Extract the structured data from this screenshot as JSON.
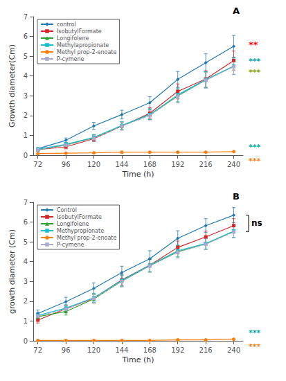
{
  "chart_data": [
    {
      "type": "line",
      "title": "A",
      "xlabel": "Time (h)",
      "ylabel": "Growth diameter(Cm)",
      "x": [
        72,
        96,
        120,
        144,
        168,
        192,
        216,
        240
      ],
      "xlim": [
        68,
        248
      ],
      "xticks": [
        72,
        96,
        120,
        144,
        168,
        192,
        216,
        240
      ],
      "ylim": [
        0,
        7
      ],
      "yticks": [
        0,
        1,
        2,
        3,
        4,
        5,
        6,
        7
      ],
      "grid": false,
      "legend": "upper left",
      "series": [
        {
          "name": "control",
          "color": "#1f77b4",
          "marker": "diamond",
          "line_style": "solid",
          "values": [
            0.33,
            0.75,
            1.48,
            2.05,
            2.65,
            3.83,
            4.67,
            5.5
          ],
          "errors": [
            0.05,
            0.12,
            0.18,
            0.22,
            0.3,
            0.4,
            0.45,
            0.55
          ]
        },
        {
          "name": "IsobutylFormate",
          "color": "#d62728",
          "marker": "square",
          "line_style": "solid",
          "values": [
            0.28,
            0.42,
            0.83,
            1.47,
            2.12,
            3.22,
            3.85,
            4.78
          ],
          "errors": [
            0.05,
            0.1,
            0.15,
            0.2,
            0.28,
            0.38,
            0.42,
            0.48
          ]
        },
        {
          "name": "Longifolene",
          "color": "#2ca02c",
          "marker": "triangle",
          "line_style": "solid",
          "values": [
            0.27,
            0.53,
            0.88,
            1.48,
            2.05,
            3.0,
            3.8,
            4.5
          ],
          "errors": [
            0.05,
            0.1,
            0.15,
            0.2,
            0.25,
            0.35,
            0.4,
            0.42
          ]
        },
        {
          "name": "Methylapropionate",
          "color": "#17becf",
          "marker": "square",
          "line_style": "solid",
          "values": [
            0.3,
            0.55,
            0.9,
            1.5,
            2.05,
            3.05,
            3.82,
            4.5
          ],
          "errors": [
            0.05,
            0.1,
            0.15,
            0.2,
            0.25,
            0.35,
            0.4,
            0.42
          ]
        },
        {
          "name": "Methyl prop-2-enoate",
          "color": "#ff7f0e",
          "marker": "circle",
          "line_style": "solid",
          "values": [
            0.08,
            0.1,
            0.12,
            0.15,
            0.15,
            0.15,
            0.15,
            0.18
          ],
          "errors": [
            0.02,
            0.02,
            0.02,
            0.02,
            0.02,
            0.02,
            0.02,
            0.02
          ]
        },
        {
          "name": "P-cymene",
          "color": "#aaaacc",
          "marker": "square",
          "line_style": "dashed",
          "values": [
            0.27,
            0.5,
            0.85,
            1.47,
            2.0,
            2.98,
            3.78,
            4.47
          ],
          "errors": [
            0.05,
            0.1,
            0.15,
            0.2,
            0.25,
            0.35,
            0.4,
            0.4
          ]
        }
      ],
      "annotations": [
        {
          "text": "**",
          "color": "red"
        },
        {
          "text": "***",
          "color": "#00aaaa"
        },
        {
          "text": "***",
          "color": "#88aa00"
        },
        {
          "text": "***",
          "color": "#00aaaa"
        },
        {
          "text": "***",
          "color": "#ff7f0e"
        }
      ]
    },
    {
      "type": "line",
      "title": "B",
      "xlabel": "Time (h)",
      "ylabel": "growth diameter (Cm)",
      "x": [
        72,
        96,
        120,
        144,
        168,
        192,
        216,
        240
      ],
      "xlim": [
        68,
        248
      ],
      "xticks": [
        72,
        96,
        120,
        144,
        168,
        192,
        216,
        240
      ],
      "ylim": [
        0,
        7
      ],
      "yticks": [
        0,
        1,
        2,
        3,
        4,
        5,
        6,
        7
      ],
      "grid": false,
      "legend": "upper left",
      "series": [
        {
          "name": "Control",
          "color": "#1f77b4",
          "marker": "diamond",
          "line_style": "solid",
          "values": [
            1.38,
            1.98,
            2.65,
            3.45,
            4.15,
            5.18,
            5.82,
            6.35
          ],
          "errors": [
            0.18,
            0.22,
            0.28,
            0.32,
            0.4,
            0.38,
            0.35,
            0.38
          ]
        },
        {
          "name": "IsobutyIFormate",
          "color": "#d62728",
          "marker": "square",
          "line_style": "solid",
          "values": [
            1.05,
            1.62,
            2.15,
            3.08,
            3.82,
            4.72,
            5.25,
            5.82
          ],
          "errors": [
            0.15,
            0.18,
            0.22,
            0.28,
            0.35,
            0.32,
            0.3,
            0.35
          ]
        },
        {
          "name": "Longifolene",
          "color": "#2ca02c",
          "marker": "triangle",
          "line_style": "solid",
          "values": [
            1.22,
            1.48,
            2.12,
            3.02,
            3.8,
            4.5,
            4.9,
            5.52
          ],
          "errors": [
            0.15,
            0.18,
            0.22,
            0.28,
            0.32,
            0.3,
            0.28,
            0.32
          ]
        },
        {
          "name": "Methypropionate",
          "color": "#17becf",
          "marker": "square",
          "line_style": "solid",
          "values": [
            1.28,
            1.65,
            2.18,
            3.05,
            3.82,
            4.55,
            4.92,
            5.55
          ],
          "errors": [
            0.15,
            0.18,
            0.22,
            0.28,
            0.32,
            0.3,
            0.28,
            0.32
          ]
        },
        {
          "name": "Methyl prop-2-enoate",
          "color": "#ff7f0e",
          "marker": "circle",
          "line_style": "solid",
          "values": [
            0.02,
            0.02,
            0.02,
            0.02,
            0.02,
            0.05,
            0.05,
            0.08
          ],
          "errors": [
            0.01,
            0.01,
            0.01,
            0.01,
            0.01,
            0.02,
            0.02,
            0.03
          ]
        },
        {
          "name": "P-cymene",
          "color": "#aaaacc",
          "marker": "square",
          "line_style": "dashed",
          "values": [
            1.25,
            1.6,
            2.15,
            3.0,
            3.78,
            4.48,
            4.88,
            5.5
          ],
          "errors": [
            0.15,
            0.18,
            0.22,
            0.28,
            0.32,
            0.3,
            0.28,
            0.3
          ]
        }
      ],
      "annotations": [
        {
          "text": "ns"
        },
        {
          "text": "***",
          "color": "#00aaaa"
        },
        {
          "text": "***",
          "color": "#ff7f0e"
        }
      ]
    }
  ]
}
